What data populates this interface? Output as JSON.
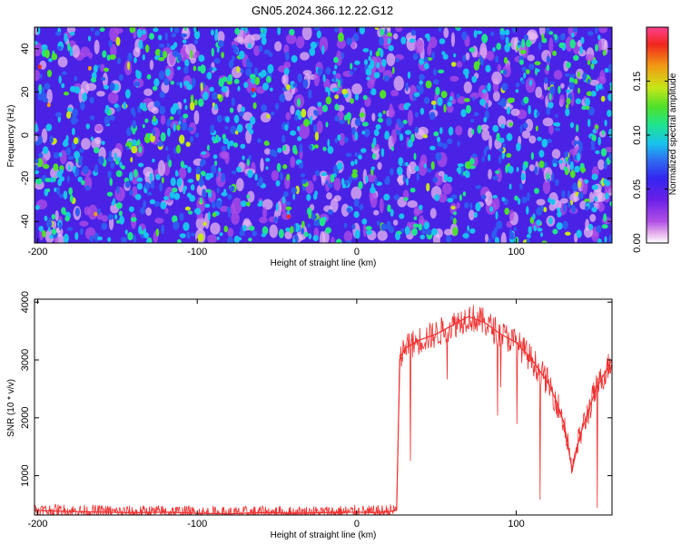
{
  "chart_data": [
    {
      "type": "heatmap",
      "title": "GN05.2024.366.12.22.G12",
      "xlabel": "Height of straight line (km)",
      "ylabel": "Frequency (Hz)",
      "xlim": [
        -202,
        160
      ],
      "ylim": [
        -50,
        50
      ],
      "x_ticks": [
        -200,
        -100,
        0,
        100
      ],
      "y_ticks": [
        -40,
        -20,
        0,
        20,
        40
      ],
      "colorbar": {
        "label": "Normalized spectral amplitude",
        "range": [
          0.0,
          0.2
        ],
        "ticks": [
          "0.00",
          "0.05",
          "0.10",
          "0.15"
        ],
        "tick_values": [
          0.0,
          0.05,
          0.1,
          0.15
        ]
      },
      "colormap": [
        "#ffffff",
        "#e9b8ef",
        "#b24fe6",
        "#7a1fe8",
        "#3b1ff0",
        "#2f5cf0",
        "#19c2ef",
        "#1fe58a",
        "#4ee02b",
        "#c7e617",
        "#f29a14",
        "#f0271e",
        "#ff3f8f"
      ],
      "grid": false
    },
    {
      "type": "line",
      "xlabel": "Height of straight line (km)",
      "ylabel": "SNR (10 * v/v)",
      "xlim": [
        -202,
        160
      ],
      "ylim": [
        320,
        4050
      ],
      "x_ticks": [
        -200,
        -100,
        0,
        100
      ],
      "y_ticks": [
        1000,
        2000,
        3000,
        4000
      ],
      "series_color": "#f03030",
      "grid": false,
      "series": [
        {
          "x": [
            -202,
            -180,
            -160,
            -140,
            -120,
            -100,
            -80,
            -60,
            -40,
            -20,
            0,
            10,
            20,
            25,
            27,
            30,
            40,
            50,
            60,
            70,
            80,
            90,
            100,
            110,
            120,
            125,
            130,
            135,
            140,
            150,
            160
          ],
          "y": [
            400,
            380,
            370,
            360,
            370,
            350,
            340,
            360,
            350,
            360,
            370,
            360,
            380,
            400,
            3000,
            3200,
            3350,
            3450,
            3600,
            3750,
            3650,
            3450,
            3300,
            3000,
            2600,
            2300,
            1900,
            1100,
            1700,
            2500,
            3000
          ]
        }
      ]
    }
  ]
}
